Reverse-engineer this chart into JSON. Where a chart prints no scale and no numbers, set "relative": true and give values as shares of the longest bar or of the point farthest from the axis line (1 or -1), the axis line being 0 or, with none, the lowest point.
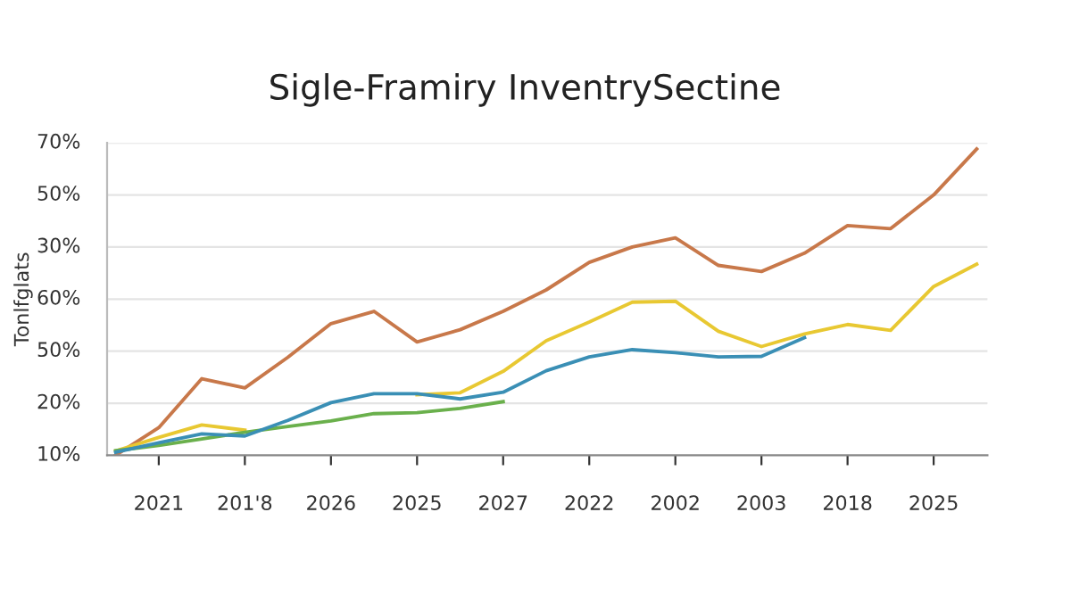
{
  "chart_data": {
    "type": "line",
    "title": "Sigle-Framiry InventrySectine",
    "ylabel": "Tonlfglats",
    "relative": true,
    "annotations": [
      "70%",
      "50%",
      "30%",
      "60%",
      "50%",
      "20%",
      "10%"
    ],
    "categories": [
      null,
      "2021",
      null,
      "201'8",
      null,
      "2026",
      null,
      "2025",
      null,
      "2027",
      null,
      "2022",
      null,
      "2002",
      null,
      "2003",
      null,
      "2018",
      null,
      "2025",
      null
    ],
    "grid": "y",
    "marker": "none",
    "line_style": "solid",
    "series": [
      {
        "color": "#c8784a",
        "values": [
          0,
          0.09,
          0.25,
          0.22,
          0.32,
          0.43,
          0.47,
          0.37,
          0.41,
          0.47,
          0.54,
          0.63,
          0.68,
          0.71,
          0.62,
          0.6,
          0.66,
          0.75,
          0.74,
          0.85,
          1.0
        ]
      },
      {
        "color": "#e8c832",
        "values": [
          0.014,
          0.058,
          0.099,
          0.082,
          null,
          null,
          null,
          0.198,
          0.204,
          0.274,
          0.374,
          0.435,
          0.5,
          0.503,
          0.405,
          0.355,
          0.396,
          0.427,
          0.408,
          0.551,
          0.624
        ]
      },
      {
        "color": "#6ab04c",
        "values": [
          0.015,
          0.032,
          0.053,
          0.075,
          0.094,
          0.112,
          0.136,
          0.139,
          0.153,
          0.175,
          null,
          null,
          null,
          null,
          null,
          null,
          null,
          null,
          null,
          null,
          null
        ]
      },
      {
        "color": "#3a8fb5",
        "values": [
          0.01,
          0.041,
          0.07,
          0.063,
          0.114,
          0.172,
          0.201,
          0.201,
          0.184,
          0.206,
          0.276,
          0.321,
          0.345,
          0.335,
          0.321,
          0.323,
          0.384,
          null,
          null,
          null,
          null
        ]
      }
    ]
  }
}
